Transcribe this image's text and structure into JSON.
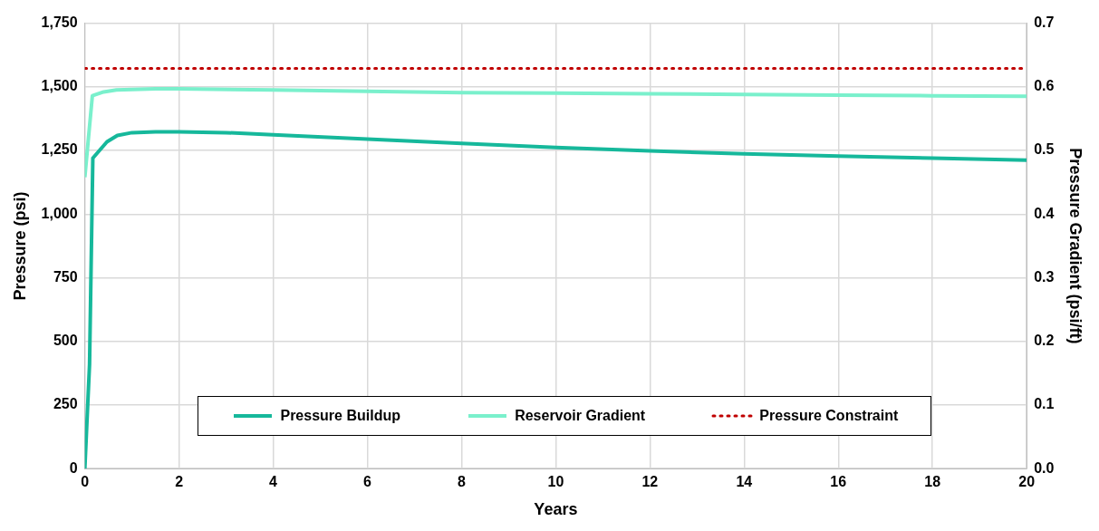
{
  "chart_data": {
    "type": "line",
    "xlabel": "Years",
    "ylabel": "Pressure (psi)",
    "y2label": "Pressure Gradient (psi/ft)",
    "xlim": [
      0,
      20
    ],
    "xticks": [
      0,
      2,
      4,
      6,
      8,
      10,
      12,
      14,
      16,
      18,
      20
    ],
    "ylim": [
      0,
      1750
    ],
    "yticks": [
      0,
      250,
      500,
      750,
      {
        "value": 1000,
        "label": "1,000"
      },
      {
        "value": 1250,
        "label": "1,250"
      },
      {
        "value": 1500,
        "label": "1,500"
      },
      {
        "value": 1750,
        "label": "1,750"
      }
    ],
    "y2lim": [
      0,
      0.7
    ],
    "y2ticks": [
      {
        "value": 0,
        "label": "0.0"
      },
      0.1,
      0.2,
      0.3,
      0.4,
      0.5,
      0.6,
      0.7
    ],
    "grid": true,
    "legend": "bottom",
    "marker": "none",
    "series": [
      {
        "name": "Pressure Buildup",
        "color": "#16b89b",
        "line_style": "solid",
        "x": [
          0,
          0.1,
          0.17,
          0.47,
          0.69,
          1,
          1.5,
          2,
          3,
          4,
          6,
          8,
          10,
          12,
          14,
          16,
          18,
          20
        ],
        "values": [
          0,
          410,
          1220,
          1284,
          1309,
          1320,
          1323,
          1323,
          1320,
          1312,
          1295,
          1278,
          1262,
          1248,
          1237,
          1228,
          1220,
          1212
        ]
      },
      {
        "name": "Reservoir Gradient",
        "color": "#7af0cc",
        "line_style": "solid",
        "axis": "y2",
        "x": [
          0,
          0.16,
          0.4,
          0.67,
          1,
          1.5,
          2,
          4,
          6,
          8,
          10,
          12,
          14,
          16,
          18,
          20
        ],
        "values": [
          0.458,
          0.586,
          0.592,
          0.595,
          0.596,
          0.597,
          0.597,
          0.595,
          0.593,
          0.591,
          0.59,
          0.589,
          0.588,
          0.587,
          0.586,
          0.585
        ]
      },
      {
        "name": "Pressure Constraint",
        "color": "#c00000",
        "line_style": "dotted",
        "x": [
          0,
          20
        ],
        "values": [
          1572,
          1572
        ]
      }
    ]
  }
}
